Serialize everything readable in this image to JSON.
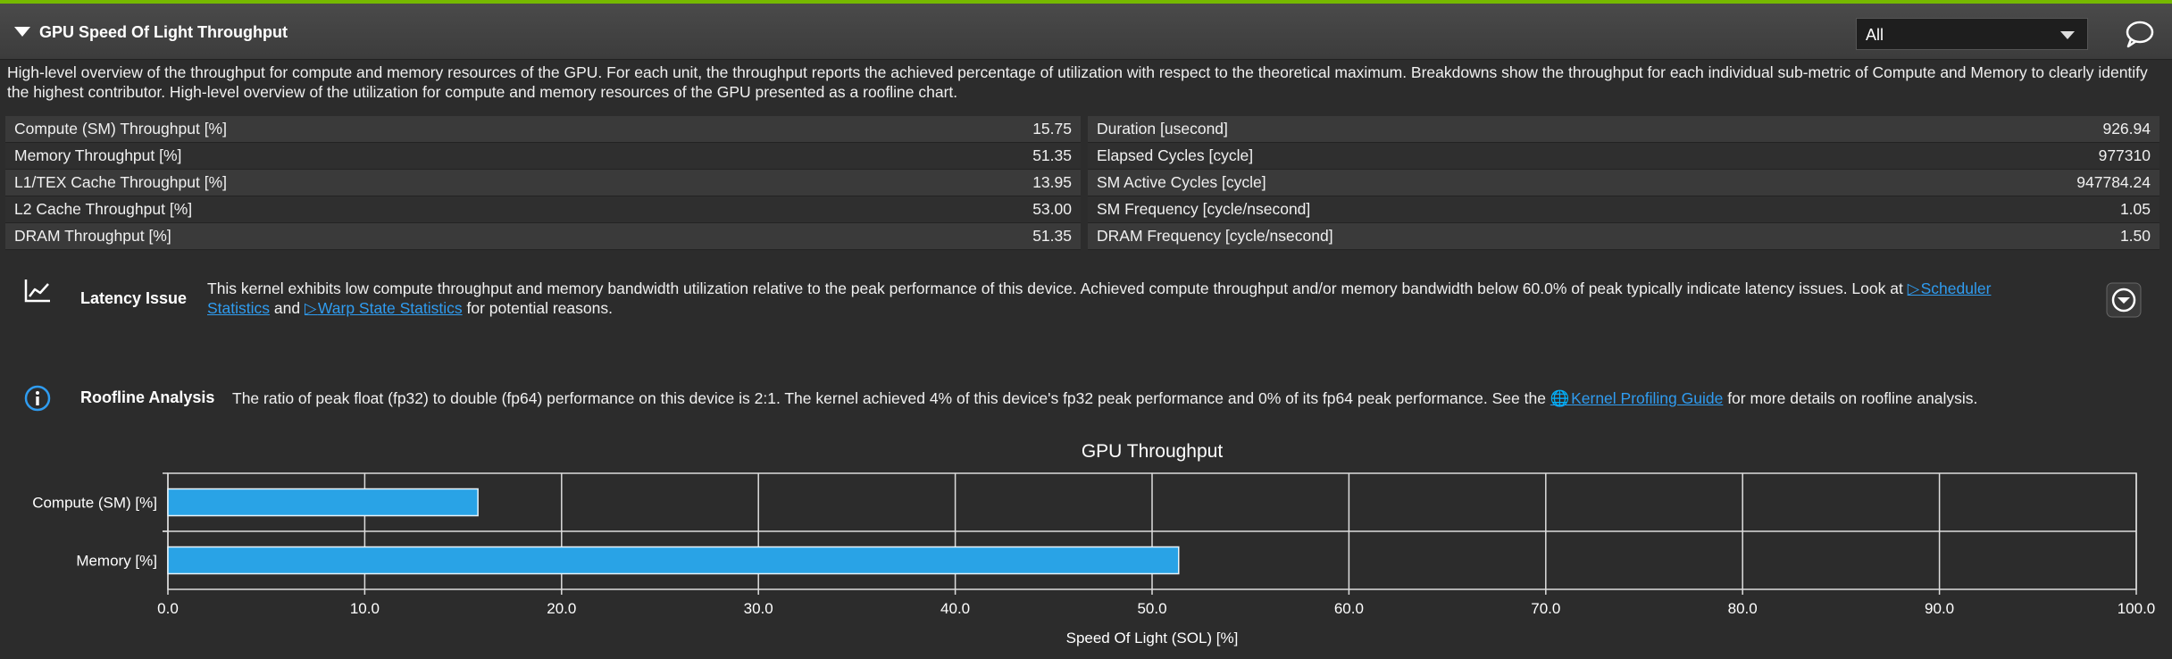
{
  "section": {
    "title": "GPU Speed Of Light Throughput",
    "filter_value": "All",
    "description": "High-level overview of the throughput for compute and memory resources of the GPU. For each unit, the throughput reports the achieved percentage of utilization with respect to the theoretical maximum. Breakdowns show the throughput for each individual sub-metric of Compute and Memory to clearly identify the highest contributor. High-level overview of the utilization for compute and memory resources of the GPU presented as a roofline chart."
  },
  "metrics": [
    {
      "left_label": "Compute (SM) Throughput [%]",
      "left_value": "15.75",
      "right_label": "Duration [usecond]",
      "right_value": "926.94"
    },
    {
      "left_label": "Memory Throughput [%]",
      "left_value": "51.35",
      "right_label": "Elapsed Cycles [cycle]",
      "right_value": "977310"
    },
    {
      "left_label": "L1/TEX Cache Throughput [%]",
      "left_value": "13.95",
      "right_label": "SM Active Cycles [cycle]",
      "right_value": "947784.24"
    },
    {
      "left_label": "L2 Cache Throughput [%]",
      "left_value": "53.00",
      "right_label": "SM Frequency [cycle/nsecond]",
      "right_value": "1.05"
    },
    {
      "left_label": "DRAM Throughput [%]",
      "left_value": "51.35",
      "right_label": "DRAM Frequency [cycle/nsecond]",
      "right_value": "1.50"
    }
  ],
  "latency_issue": {
    "heading": "Latency Issue",
    "text_1": "This kernel exhibits low compute throughput and memory bandwidth utilization relative to the peak performance of this device. Achieved compute throughput and/or memory bandwidth below 60.0% of peak typically indicate latency issues. Look at ",
    "link_1_line1": "Scheduler",
    "link_1_line2": "Statistics",
    "text_2": " and ",
    "link_2": "Warp State Statistics",
    "text_3": " for potential reasons."
  },
  "roofline": {
    "heading": "Roofline Analysis",
    "text_1": "The ratio of peak float (fp32) to double (fp64) performance on this device is 2:1. The kernel achieved 4% of this device's fp32 peak performance and 0% of its fp64 peak performance. See the ",
    "link": "Kernel Profiling Guide",
    "text_2": " for more details on roofline analysis."
  },
  "colors": {
    "accent": "#76b900",
    "bar": "#29a3e6",
    "link": "#2f9cf0"
  },
  "icons": {
    "collapse": "caret-down-icon",
    "comment": "comment-icon",
    "latency": "line-chart-icon",
    "info": "info-icon",
    "expand": "chevron-circle-icon",
    "link": "arrow-link-icon",
    "globe": "globe-icon"
  },
  "chart_data": {
    "type": "bar",
    "orientation": "horizontal",
    "title": "GPU Throughput",
    "categories": [
      "Compute (SM) [%]",
      "Memory [%]"
    ],
    "values": [
      15.75,
      51.35
    ],
    "xlabel": "Speed Of Light (SOL) [%]",
    "ylabel": "",
    "xlim": [
      0,
      100
    ],
    "xticks": [
      "0.0",
      "10.0",
      "20.0",
      "30.0",
      "40.0",
      "50.0",
      "60.0",
      "70.0",
      "80.0",
      "90.0",
      "100.0"
    ],
    "grid": true
  }
}
